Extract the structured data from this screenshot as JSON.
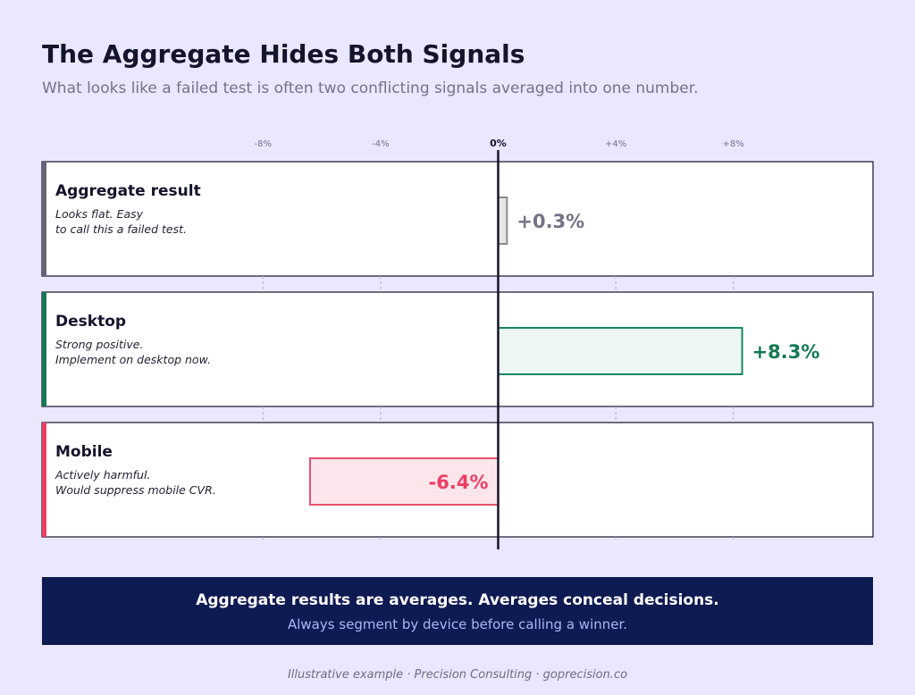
{
  "header": {
    "title": "The Aggregate Hides Both Signals",
    "subtitle": "What looks like a failed test is often two conflicting signals averaged into one number."
  },
  "chart_data": {
    "type": "bar",
    "orientation": "horizontal",
    "xlim": [
      -10,
      12
    ],
    "ticks": [
      {
        "value": -8,
        "label": "-8%"
      },
      {
        "value": -4,
        "label": "-4%"
      },
      {
        "value": 0,
        "label": "0%"
      },
      {
        "value": 4,
        "label": "+4%"
      },
      {
        "value": 8,
        "label": "+8%"
      }
    ],
    "series": [
      {
        "key": "aggregate",
        "name": "Aggregate result",
        "note": [
          "Looks flat. Easy",
          "to call this a failed test."
        ],
        "value": 0.3,
        "label": "+0.3%",
        "colors": {
          "accent": "#646478",
          "fill": "#e6e6e6",
          "stroke": "#8a8a8a",
          "text": "#737386"
        }
      },
      {
        "key": "desktop",
        "name": "Desktop",
        "note": [
          "Strong positive.",
          "Implement on desktop now."
        ],
        "value": 8.3,
        "label": "+8.3%",
        "colors": {
          "accent": "#137a52",
          "fill": "#ecf7f3",
          "stroke": "#188a5c",
          "text": "#137a52"
        }
      },
      {
        "key": "mobile",
        "name": "Mobile",
        "note": [
          "Actively harmful.",
          "Would suppress mobile CVR."
        ],
        "value": -6.4,
        "label": "-6.4%",
        "colors": {
          "accent": "#ee3d63",
          "fill": "#fde6eb",
          "stroke": "#e9506e",
          "text": "#ee3d63"
        }
      }
    ]
  },
  "banner": {
    "headline": "Aggregate results are averages. Averages conceal decisions.",
    "subline": "Always segment by device before calling a winner."
  },
  "footer": {
    "text": "Illustrative example · Precision Consulting · goprecision.co"
  },
  "colors": {
    "background": "#eae7fe",
    "banner": "#0e1a52",
    "zero_line": "#14142b"
  }
}
